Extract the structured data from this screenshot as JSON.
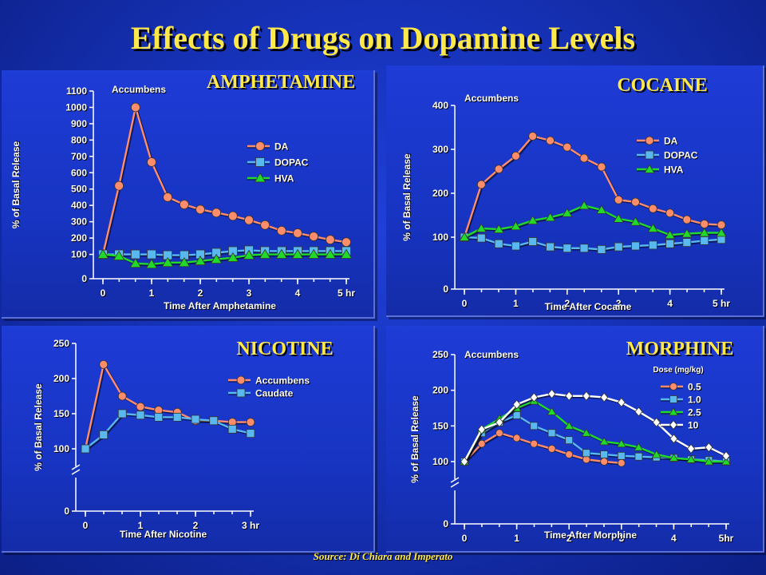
{
  "title": "Effects of Drugs on Dopamine Levels",
  "source": "Source: Di Chiara and Imperato",
  "colors": {
    "DA": "#ff8c6a",
    "DOPAC": "#5ab8f0",
    "HVA": "#22d82a",
    "dose_10": "#ffffff",
    "heading": "#ffe84a"
  },
  "chart_data": [
    {
      "id": "amph",
      "type": "line",
      "title": "AMPHETAMINE",
      "region": "Accumbens",
      "xlabel": "Time After Amphetamine",
      "ylabel": "% of Basal Release",
      "xlim": [
        0,
        5
      ],
      "ylim": [
        0,
        1100
      ],
      "xticks": [
        0,
        1,
        2,
        3,
        4,
        5
      ],
      "xtick_labels": [
        "0",
        "1",
        "2",
        "3",
        "4",
        "5 hr"
      ],
      "yticks": [
        0,
        100,
        200,
        300,
        400,
        500,
        600,
        700,
        800,
        900,
        1000,
        1100
      ],
      "ytick_labels": [
        "0",
        "100",
        "200",
        "300",
        "400",
        "500",
        "600",
        "700",
        "800",
        "900",
        "1000",
        "1100"
      ],
      "legend_position": "center-right",
      "series": [
        {
          "name": "DA",
          "marker": "circle",
          "x": [
            0,
            0.33,
            0.67,
            1.0,
            1.33,
            1.67,
            2.0,
            2.33,
            2.67,
            3.0,
            3.33,
            3.67,
            4.0,
            4.33,
            4.67,
            5.0
          ],
          "y": [
            100,
            520,
            1000,
            665,
            450,
            405,
            375,
            355,
            335,
            310,
            280,
            245,
            230,
            210,
            190,
            175
          ]
        },
        {
          "name": "DOPAC",
          "marker": "square",
          "x": [
            0,
            0.33,
            0.67,
            1.0,
            1.33,
            1.67,
            2.0,
            2.33,
            2.67,
            3.0,
            3.33,
            3.67,
            4.0,
            4.33,
            4.67,
            5.0
          ],
          "y": [
            100,
            100,
            100,
            100,
            95,
            95,
            100,
            110,
            120,
            125,
            120,
            120,
            120,
            120,
            120,
            120
          ]
        },
        {
          "name": "HVA",
          "marker": "triangle",
          "x": [
            0,
            0.33,
            0.67,
            1.0,
            1.33,
            1.67,
            2.0,
            2.33,
            2.67,
            3.0,
            3.33,
            3.67,
            4.0,
            4.33,
            4.67,
            5.0
          ],
          "y": [
            100,
            90,
            45,
            40,
            50,
            50,
            60,
            70,
            80,
            95,
            100,
            100,
            100,
            100,
            100,
            100
          ]
        }
      ]
    },
    {
      "id": "coc",
      "type": "line",
      "title": "COCAINE",
      "region": "Accumbens",
      "xlabel": "Time After Cocaine",
      "ylabel": "% of Basal Release",
      "xlim": [
        0,
        5
      ],
      "ylim": [
        0,
        400
      ],
      "xticks": [
        0,
        1,
        2,
        3,
        4,
        5
      ],
      "xtick_labels": [
        "0",
        "1",
        "2",
        "3",
        "4",
        "5 hr"
      ],
      "yticks": [
        0,
        100,
        200,
        300,
        400
      ],
      "ytick_labels": [
        "0",
        "100",
        "200",
        "300",
        "400"
      ],
      "legend_position": "top-right",
      "series": [
        {
          "name": "DA",
          "marker": "circle",
          "x": [
            0,
            0.33,
            0.67,
            1.0,
            1.33,
            1.67,
            2.0,
            2.33,
            2.67,
            3.0,
            3.33,
            3.67,
            4.0,
            4.33,
            4.67,
            5.0
          ],
          "y": [
            100,
            220,
            255,
            285,
            330,
            320,
            305,
            280,
            260,
            185,
            180,
            165,
            155,
            140,
            130,
            128
          ]
        },
        {
          "name": "DOPAC",
          "marker": "square",
          "x": [
            0,
            0.33,
            0.67,
            1.0,
            1.33,
            1.67,
            2.0,
            2.33,
            2.67,
            3.0,
            3.33,
            3.67,
            4.0,
            4.33,
            4.67,
            5.0
          ],
          "y": [
            100,
            98,
            85,
            80,
            90,
            78,
            75,
            75,
            72,
            78,
            80,
            82,
            85,
            88,
            92,
            95
          ]
        },
        {
          "name": "HVA",
          "marker": "triangle",
          "x": [
            0,
            0.33,
            0.67,
            1.0,
            1.33,
            1.67,
            2.0,
            2.33,
            2.67,
            3.0,
            3.33,
            3.67,
            4.0,
            4.33,
            4.67,
            5.0
          ],
          "y": [
            100,
            120,
            118,
            125,
            138,
            145,
            155,
            172,
            162,
            142,
            135,
            120,
            105,
            108,
            110,
            110
          ]
        }
      ]
    },
    {
      "id": "nic",
      "type": "line",
      "title": "NICOTINE",
      "xlabel": "Time After Nicotine",
      "ylabel": "% of Basal Release",
      "xlim": [
        0,
        3
      ],
      "ylim": [
        0,
        250
      ],
      "axis_break": [
        0,
        100
      ],
      "xticks": [
        0,
        1,
        2,
        3
      ],
      "xtick_labels": [
        "0",
        "1",
        "2",
        "3 hr"
      ],
      "yticks": [
        0,
        100,
        150,
        200,
        250
      ],
      "ytick_labels": [
        "0",
        "100",
        "150",
        "200",
        "250"
      ],
      "legend_position": "top-right",
      "series": [
        {
          "name": "Accumbens",
          "marker": "circle",
          "x": [
            0,
            0.33,
            0.67,
            1.0,
            1.33,
            1.67,
            2.0,
            2.33,
            2.67,
            3.0
          ],
          "y": [
            100,
            220,
            175,
            160,
            155,
            152,
            140,
            140,
            138,
            138
          ]
        },
        {
          "name": "Caudate",
          "marker": "square",
          "x": [
            0,
            0.33,
            0.67,
            1.0,
            1.33,
            1.67,
            2.0,
            2.33,
            2.67,
            3.0
          ],
          "y": [
            100,
            120,
            150,
            148,
            145,
            145,
            142,
            140,
            128,
            122
          ]
        }
      ]
    },
    {
      "id": "mor",
      "type": "line",
      "title": "MORPHINE",
      "region": "Accumbens",
      "xlabel": "Time After Morphine",
      "ylabel": "% of Basal Release",
      "xlim": [
        0,
        5
      ],
      "ylim": [
        0,
        250
      ],
      "axis_break": [
        0,
        100
      ],
      "xticks": [
        0,
        1,
        2,
        3,
        4,
        5
      ],
      "xtick_labels": [
        "0",
        "1",
        "2",
        "3",
        "4",
        "5hr"
      ],
      "yticks": [
        0,
        100,
        150,
        200,
        250
      ],
      "ytick_labels": [
        "0",
        "100",
        "150",
        "200",
        "250"
      ],
      "legend_title": "Dose (mg/kg)",
      "legend_position": "top-right",
      "series": [
        {
          "name": "0.5",
          "marker": "circle",
          "x": [
            0,
            0.33,
            0.67,
            1.0,
            1.33,
            1.67,
            2.0,
            2.33,
            2.67,
            3.0
          ],
          "y": [
            100,
            125,
            140,
            133,
            125,
            118,
            110,
            103,
            100,
            98
          ]
        },
        {
          "name": "1.0",
          "marker": "square",
          "x": [
            0,
            0.33,
            0.67,
            1.0,
            1.33,
            1.67,
            2.0,
            2.33,
            2.67,
            3.0,
            3.33,
            3.67,
            4.0,
            4.33,
            4.67,
            5.0
          ],
          "y": [
            100,
            140,
            155,
            165,
            150,
            140,
            130,
            112,
            110,
            108,
            107,
            106,
            105,
            103,
            102,
            100
          ]
        },
        {
          "name": "2.5",
          "marker": "triangle",
          "x": [
            0,
            0.33,
            0.67,
            1.0,
            1.33,
            1.67,
            2.0,
            2.33,
            2.67,
            3.0,
            3.33,
            3.67,
            4.0,
            4.33,
            4.67,
            5.0
          ],
          "y": [
            100,
            145,
            160,
            175,
            185,
            170,
            150,
            140,
            128,
            125,
            120,
            110,
            105,
            103,
            100,
            100
          ]
        },
        {
          "name": "10",
          "marker": "diamond",
          "x": [
            0,
            0.33,
            0.67,
            1.0,
            1.33,
            1.67,
            2.0,
            2.33,
            2.67,
            3.0,
            3.33,
            3.67,
            4.0,
            4.33,
            4.67,
            5.0
          ],
          "y": [
            100,
            145,
            155,
            180,
            190,
            195,
            192,
            192,
            190,
            183,
            170,
            155,
            132,
            118,
            120,
            108
          ]
        }
      ]
    }
  ]
}
